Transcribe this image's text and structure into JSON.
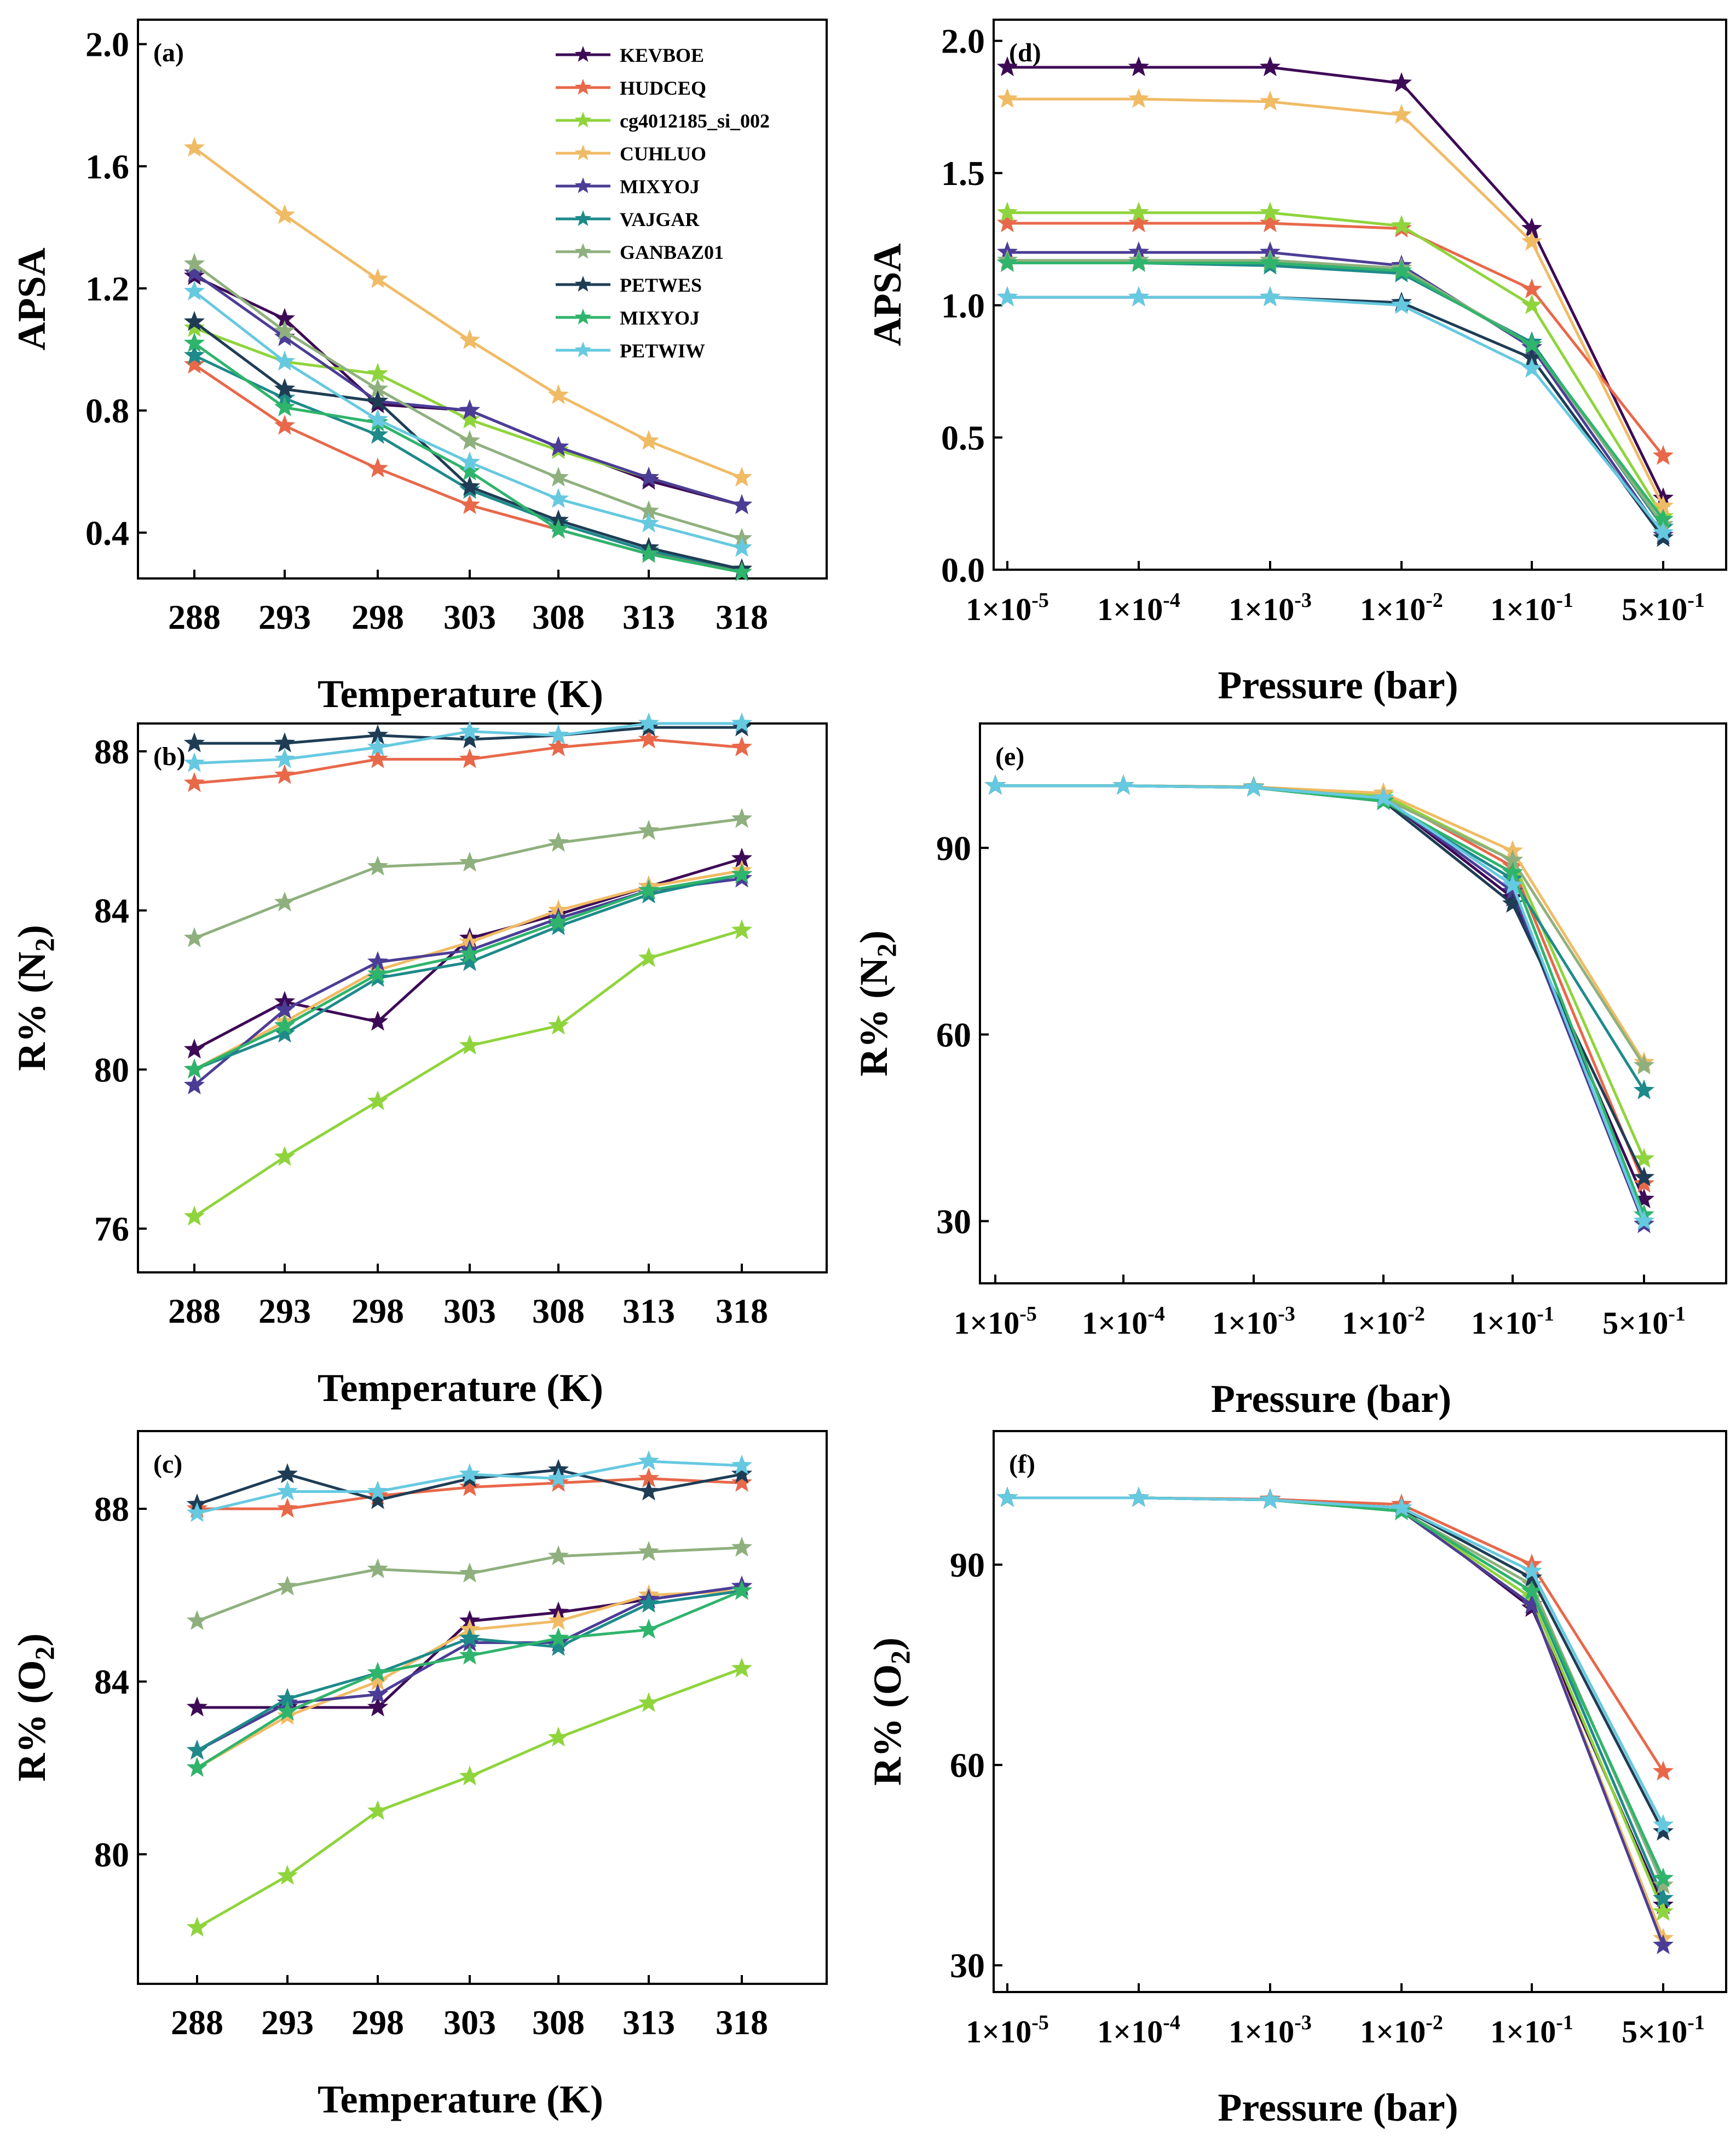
{
  "colors": {
    "KEVBOE": "#3d0a56",
    "HUDCEQ": "#e8684a",
    "cg4012185_si_002": "#8fd43c",
    "CUHLUO": "#f0bb65",
    "MIXYOJ_a": "#4b3d96",
    "VAJGAR": "#1e8a8a",
    "GANBAZ01": "#8fb07e",
    "PETWES": "#1e3d55",
    "MIXYOJ_b": "#2fb46c",
    "PETWIW": "#66c9e0"
  },
  "legend": [
    "KEVBOE",
    "HUDCEQ",
    "cg4012185_si_002",
    "CUHLUO",
    "MIXYOJ",
    "VAJGAR",
    "GANBAZ01",
    "PETWES",
    "MIXYOJ",
    "PETWIW"
  ],
  "chart_data": [
    {
      "id": "a",
      "tag": "(a)",
      "type": "line",
      "xlabel": "Temperature (K)",
      "ylabel": "APSA",
      "x_labels": [
        "288",
        "293",
        "298",
        "303",
        "308",
        "313",
        "318"
      ],
      "ylim": [
        0.25,
        2.08
      ],
      "yticks": [
        0.4,
        0.8,
        1.2,
        1.6,
        2.0
      ],
      "ytick_labels": [
        "0.4",
        "0.8",
        "1.2",
        "1.6",
        "2.0"
      ],
      "series": [
        {
          "name": "KEVBOE",
          "color": "#3d0a56",
          "values": [
            1.24,
            1.1,
            0.82,
            0.8,
            0.68,
            0.57,
            0.49
          ]
        },
        {
          "name": "HUDCEQ",
          "color": "#e8684a",
          "values": [
            0.95,
            0.75,
            0.61,
            0.49,
            0.41,
            0.33,
            0.28
          ]
        },
        {
          "name": "cg4012185_si_002",
          "color": "#8fd43c",
          "values": [
            1.07,
            0.96,
            0.92,
            0.77,
            0.67,
            0.58,
            0.49
          ]
        },
        {
          "name": "CUHLUO",
          "color": "#f0bb65",
          "values": [
            1.66,
            1.44,
            1.23,
            1.03,
            0.85,
            0.7,
            0.58
          ]
        },
        {
          "name": "MIXYOJ",
          "color": "#4b3d96",
          "values": [
            1.25,
            1.04,
            0.83,
            0.8,
            0.68,
            0.58,
            0.49
          ]
        },
        {
          "name": "VAJGAR",
          "color": "#1e8a8a",
          "values": [
            0.98,
            0.84,
            0.72,
            0.54,
            0.43,
            0.34,
            0.28
          ]
        },
        {
          "name": "GANBAZ01",
          "color": "#8fb07e",
          "values": [
            1.28,
            1.06,
            0.87,
            0.7,
            0.58,
            0.47,
            0.38
          ]
        },
        {
          "name": "PETWES",
          "color": "#1e3d55",
          "values": [
            1.09,
            0.87,
            0.83,
            0.55,
            0.44,
            0.35,
            0.28
          ]
        },
        {
          "name": "MIXYOJ",
          "color": "#2fb46c",
          "values": [
            1.02,
            0.81,
            0.76,
            0.6,
            0.41,
            0.33,
            0.27
          ]
        },
        {
          "name": "PETWIW",
          "color": "#66c9e0",
          "values": [
            1.19,
            0.96,
            0.77,
            0.63,
            0.51,
            0.43,
            0.35
          ]
        }
      ]
    },
    {
      "id": "b",
      "tag": "(b)",
      "type": "line",
      "xlabel": "Temperature (K)",
      "ylabel": "R% (N",
      "ylabel_sub": "2",
      "ylabel_end": ")",
      "x_labels": [
        "288",
        "293",
        "298",
        "303",
        "308",
        "313",
        "318"
      ],
      "ylim": [
        74.9,
        88.7
      ],
      "yticks": [
        76,
        80,
        84,
        88
      ],
      "ytick_labels": [
        "76",
        "80",
        "84",
        "88"
      ],
      "series": [
        {
          "name": "KEVBOE",
          "color": "#3d0a56",
          "values": [
            80.5,
            81.7,
            81.2,
            83.3,
            83.9,
            84.6,
            85.3
          ]
        },
        {
          "name": "HUDCEQ",
          "color": "#e8684a",
          "values": [
            87.2,
            87.4,
            87.8,
            87.8,
            88.1,
            88.3,
            88.1
          ]
        },
        {
          "name": "cg4012185_si_002",
          "color": "#8fd43c",
          "values": [
            76.3,
            77.8,
            79.2,
            80.6,
            81.1,
            82.8,
            83.5
          ]
        },
        {
          "name": "CUHLUO",
          "color": "#f0bb65",
          "values": [
            80.0,
            81.2,
            82.5,
            83.2,
            84.0,
            84.6,
            85.0
          ]
        },
        {
          "name": "MIXYOJ",
          "color": "#4b3d96",
          "values": [
            79.6,
            81.5,
            82.7,
            83.0,
            83.8,
            84.5,
            84.8
          ]
        },
        {
          "name": "VAJGAR",
          "color": "#1e8a8a",
          "values": [
            80.0,
            80.9,
            82.3,
            82.7,
            83.6,
            84.4,
            84.9
          ]
        },
        {
          "name": "GANBAZ01",
          "color": "#8fb07e",
          "values": [
            83.3,
            84.2,
            85.1,
            85.2,
            85.7,
            86.0,
            86.3
          ]
        },
        {
          "name": "PETWES",
          "color": "#1e3d55",
          "values": [
            88.2,
            88.2,
            88.4,
            88.3,
            88.4,
            88.6,
            88.6
          ]
        },
        {
          "name": "MIXYOJ",
          "color": "#2fb46c",
          "values": [
            80.0,
            81.1,
            82.4,
            82.9,
            83.7,
            84.5,
            84.9
          ]
        },
        {
          "name": "PETWIW",
          "color": "#66c9e0",
          "values": [
            87.7,
            87.8,
            88.1,
            88.5,
            88.4,
            88.7,
            88.7
          ]
        }
      ]
    },
    {
      "id": "c",
      "tag": "(c)",
      "type": "line",
      "xlabel": "Temperature (K)",
      "ylabel": "R% (O",
      "ylabel_sub": "2",
      "ylabel_end": ")",
      "x_labels": [
        "288",
        "293",
        "298",
        "303",
        "308",
        "313",
        "318"
      ],
      "ylim": [
        77.0,
        89.8
      ],
      "yticks": [
        80,
        84,
        88
      ],
      "ytick_labels": [
        "80",
        "84",
        "88"
      ],
      "series": [
        {
          "name": "KEVBOE",
          "color": "#3d0a56",
          "values": [
            83.4,
            83.4,
            83.4,
            85.4,
            85.6,
            85.9,
            86.2
          ]
        },
        {
          "name": "HUDCEQ",
          "color": "#e8684a",
          "values": [
            88.0,
            88.0,
            88.3,
            88.5,
            88.6,
            88.7,
            88.6
          ]
        },
        {
          "name": "cg4012185_si_002",
          "color": "#8fd43c",
          "values": [
            78.3,
            79.5,
            81.0,
            81.8,
            82.7,
            83.5,
            84.3
          ]
        },
        {
          "name": "CUHLUO",
          "color": "#f0bb65",
          "values": [
            82.0,
            83.2,
            84.0,
            85.2,
            85.4,
            86.0,
            86.1
          ]
        },
        {
          "name": "MIXYOJ",
          "color": "#4b3d96",
          "values": [
            82.4,
            83.5,
            83.7,
            84.9,
            84.9,
            85.9,
            86.2
          ]
        },
        {
          "name": "VAJGAR",
          "color": "#1e8a8a",
          "values": [
            82.4,
            83.6,
            84.2,
            85.0,
            84.8,
            85.8,
            86.1
          ]
        },
        {
          "name": "GANBAZ01",
          "color": "#8fb07e",
          "values": [
            85.4,
            86.2,
            86.6,
            86.5,
            86.9,
            87.0,
            87.1
          ]
        },
        {
          "name": "PETWES",
          "color": "#1e3d55",
          "values": [
            88.1,
            88.8,
            88.2,
            88.7,
            88.9,
            88.4,
            88.8
          ]
        },
        {
          "name": "MIXYOJ",
          "color": "#2fb46c",
          "values": [
            82.0,
            83.3,
            84.2,
            84.6,
            85.0,
            85.2,
            86.1
          ]
        },
        {
          "name": "PETWIW",
          "color": "#66c9e0",
          "values": [
            87.9,
            88.4,
            88.4,
            88.8,
            88.7,
            89.1,
            89.0
          ]
        }
      ]
    },
    {
      "id": "d",
      "tag": "(d)",
      "type": "line",
      "xlabel": "Pressure (bar)",
      "ylabel": "APSA",
      "x_labels": [
        {
          "b": "1×10",
          "e": "-5"
        },
        {
          "b": "1×10",
          "e": "-4"
        },
        {
          "b": "1×10",
          "e": "-3"
        },
        {
          "b": "1×10",
          "e": "-2"
        },
        {
          "b": "1×10",
          "e": "-1"
        },
        {
          "b": "5×10",
          "e": "-1"
        }
      ],
      "ylim": [
        0.0,
        2.08
      ],
      "yticks": [
        0.0,
        0.5,
        1.0,
        1.5,
        2.0
      ],
      "ytick_labels": [
        "0.0",
        "0.5",
        "1.0",
        "1.5",
        "2.0"
      ],
      "series": [
        {
          "name": "KEVBOE",
          "color": "#3d0a56",
          "values": [
            1.9,
            1.9,
            1.9,
            1.84,
            1.29,
            0.27
          ]
        },
        {
          "name": "HUDCEQ",
          "color": "#e8684a",
          "values": [
            1.31,
            1.31,
            1.31,
            1.29,
            1.06,
            0.43
          ]
        },
        {
          "name": "cg4012185_si_002",
          "color": "#8fd43c",
          "values": [
            1.35,
            1.35,
            1.35,
            1.3,
            1.0,
            0.2
          ]
        },
        {
          "name": "CUHLUO",
          "color": "#f0bb65",
          "values": [
            1.78,
            1.78,
            1.77,
            1.72,
            1.24,
            0.24
          ]
        },
        {
          "name": "MIXYOJ",
          "color": "#4b3d96",
          "values": [
            1.2,
            1.2,
            1.2,
            1.15,
            0.84,
            0.13
          ]
        },
        {
          "name": "VAJGAR",
          "color": "#1e8a8a",
          "values": [
            1.16,
            1.16,
            1.15,
            1.12,
            0.86,
            0.16
          ]
        },
        {
          "name": "GANBAZ01",
          "color": "#8fb07e",
          "values": [
            1.17,
            1.17,
            1.17,
            1.14,
            0.85,
            0.17
          ]
        },
        {
          "name": "PETWES",
          "color": "#1e3d55",
          "values": [
            1.03,
            1.03,
            1.03,
            1.01,
            0.8,
            0.12
          ]
        },
        {
          "name": "MIXYOJ",
          "color": "#2fb46c",
          "values": [
            1.16,
            1.16,
            1.16,
            1.13,
            0.85,
            0.19
          ]
        },
        {
          "name": "PETWIW",
          "color": "#66c9e0",
          "values": [
            1.03,
            1.03,
            1.03,
            1.0,
            0.76,
            0.14
          ]
        }
      ]
    },
    {
      "id": "e",
      "tag": "(e)",
      "type": "line",
      "xlabel": "Pressure (bar)",
      "ylabel": "R% (N",
      "ylabel_sub": "2",
      "ylabel_end": ")",
      "x_labels": [
        {
          "b": "1×10",
          "e": "-5"
        },
        {
          "b": "1×10",
          "e": "-4"
        },
        {
          "b": "1×10",
          "e": "-3"
        },
        {
          "b": "1×10",
          "e": "-2"
        },
        {
          "b": "1×10",
          "e": "-1"
        },
        {
          "b": "5×10",
          "e": "-1"
        }
      ],
      "ylim": [
        20,
        110
      ],
      "yticks": [
        30,
        60,
        90
      ],
      "ytick_labels": [
        "30",
        "60",
        "90"
      ],
      "series": [
        {
          "name": "KEVBOE",
          "color": "#3d0a56",
          "values": [
            100,
            100,
            99.8,
            98,
            82,
            33.5
          ]
        },
        {
          "name": "HUDCEQ",
          "color": "#e8684a",
          "values": [
            100,
            100,
            99.8,
            98.5,
            87,
            36
          ]
        },
        {
          "name": "cg4012185_si_002",
          "color": "#8fd43c",
          "values": [
            100,
            100,
            99.8,
            98.5,
            88,
            40
          ]
        },
        {
          "name": "CUHLUO",
          "color": "#f0bb65",
          "values": [
            100,
            100,
            99.8,
            98.8,
            89.5,
            55.5
          ]
        },
        {
          "name": "MIXYOJ",
          "color": "#4b3d96",
          "values": [
            100,
            100,
            99.7,
            98,
            83,
            29.5
          ]
        },
        {
          "name": "VAJGAR",
          "color": "#1e8a8a",
          "values": [
            100,
            100,
            99.7,
            97.5,
            85,
            51
          ]
        },
        {
          "name": "GANBAZ01",
          "color": "#8fb07e",
          "values": [
            100,
            100,
            99.8,
            98,
            88,
            55
          ]
        },
        {
          "name": "PETWES",
          "color": "#1e3d55",
          "values": [
            100,
            100,
            99.7,
            97.5,
            81,
            37
          ]
        },
        {
          "name": "MIXYOJ",
          "color": "#2fb46c",
          "values": [
            100,
            100,
            99.7,
            97.5,
            86,
            31
          ]
        },
        {
          "name": "PETWIW",
          "color": "#66c9e0",
          "values": [
            100,
            100,
            99.7,
            98,
            84,
            30
          ]
        }
      ]
    },
    {
      "id": "f",
      "tag": "(f)",
      "type": "line",
      "xlabel": "Pressure (bar)",
      "ylabel": "R% (O",
      "ylabel_sub": "2",
      "ylabel_end": ")",
      "x_labels": [
        {
          "b": "1×10",
          "e": "-5"
        },
        {
          "b": "1×10",
          "e": "-4"
        },
        {
          "b": "1×10",
          "e": "-3"
        },
        {
          "b": "1×10",
          "e": "-2"
        },
        {
          "b": "1×10",
          "e": "-1"
        },
        {
          "b": "5×10",
          "e": "-1"
        }
      ],
      "ylim": [
        26,
        110
      ],
      "yticks": [
        30,
        60,
        90
      ],
      "ytick_labels": [
        "30",
        "60",
        "90"
      ],
      "series": [
        {
          "name": "KEVBOE",
          "color": "#3d0a56",
          "values": [
            100,
            100,
            99.7,
            98.5,
            83.5,
            39
          ]
        },
        {
          "name": "HUDCEQ",
          "color": "#e8684a",
          "values": [
            100,
            100,
            99.8,
            99,
            90,
            59
          ]
        },
        {
          "name": "cg4012185_si_002",
          "color": "#8fd43c",
          "values": [
            100,
            100,
            99.7,
            98,
            85,
            38
          ]
        },
        {
          "name": "CUHLUO",
          "color": "#f0bb65",
          "values": [
            100,
            100,
            99.7,
            98,
            84,
            34
          ]
        },
        {
          "name": "MIXYOJ",
          "color": "#4b3d96",
          "values": [
            100,
            100,
            99.7,
            98,
            84,
            33
          ]
        },
        {
          "name": "VAJGAR",
          "color": "#1e8a8a",
          "values": [
            100,
            100,
            99.7,
            98,
            86,
            40
          ]
        },
        {
          "name": "GANBAZ01",
          "color": "#8fb07e",
          "values": [
            100,
            100,
            99.7,
            98,
            87,
            42
          ]
        },
        {
          "name": "PETWES",
          "color": "#1e3d55",
          "values": [
            100,
            100,
            99.7,
            98.5,
            88,
            50
          ]
        },
        {
          "name": "MIXYOJ",
          "color": "#2fb46c",
          "values": [
            100,
            100,
            99.7,
            98,
            86,
            43
          ]
        },
        {
          "name": "PETWIW",
          "color": "#66c9e0",
          "values": [
            100,
            100,
            99.7,
            98.5,
            89,
            51
          ]
        }
      ]
    }
  ]
}
